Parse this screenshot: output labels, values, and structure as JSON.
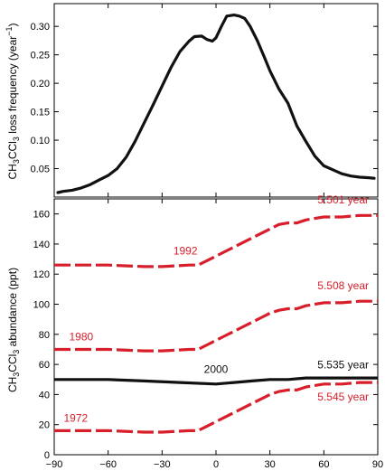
{
  "chart_data": [
    {
      "panel": "top",
      "type": "line",
      "ylabel": {
        "prefix": "CH",
        "sub1": "3",
        "mid": "CCl",
        "sub2": "3",
        "suffix": " loss frequency (year",
        "sup": "−1",
        "close": ")"
      },
      "xlim": [
        -90,
        90
      ],
      "ylim": [
        0,
        0.34
      ],
      "yticks": [
        "0.05",
        "0.10",
        "0.15",
        "0.20",
        "0.25",
        "0.30"
      ],
      "ytick_values": [
        0.05,
        0.1,
        0.15,
        0.2,
        0.25,
        0.3
      ],
      "grid": false,
      "series": [
        {
          "color": "#111111",
          "dashed": false,
          "x": [
            -88,
            -85,
            -80,
            -75,
            -70,
            -65,
            -60,
            -55,
            -50,
            -45,
            -40,
            -35,
            -30,
            -25,
            -20,
            -15,
            -12,
            -8,
            -5,
            -2,
            0,
            3,
            6,
            10,
            13,
            16,
            19,
            23,
            27,
            30,
            35,
            40,
            45,
            50,
            55,
            60,
            65,
            70,
            75,
            80,
            85,
            88
          ],
          "y": [
            0.008,
            0.01,
            0.012,
            0.016,
            0.022,
            0.03,
            0.038,
            0.05,
            0.07,
            0.098,
            0.13,
            0.162,
            0.195,
            0.228,
            0.256,
            0.274,
            0.282,
            0.283,
            0.277,
            0.274,
            0.28,
            0.3,
            0.318,
            0.32,
            0.318,
            0.314,
            0.3,
            0.275,
            0.245,
            0.222,
            0.19,
            0.165,
            0.125,
            0.098,
            0.072,
            0.055,
            0.048,
            0.041,
            0.037,
            0.035,
            0.034,
            0.033
          ]
        }
      ]
    },
    {
      "panel": "bottom",
      "type": "line",
      "ylabel": {
        "prefix": "CH",
        "sub1": "3",
        "mid": "CCl",
        "sub2": "3",
        "suffix": " abundance (ppt)"
      },
      "xlim": [
        -90,
        90
      ],
      "ylim": [
        0,
        170
      ],
      "yticks": [
        "0",
        "20",
        "40",
        "60",
        "80",
        "100",
        "120",
        "140",
        "160"
      ],
      "ytick_values": [
        0,
        20,
        40,
        60,
        80,
        100,
        120,
        140,
        160
      ],
      "xticks": [
        "−90",
        "−60",
        "−30",
        "0",
        "30",
        "60",
        "90"
      ],
      "xtick_values": [
        -90,
        -60,
        -30,
        0,
        30,
        60,
        90
      ],
      "grid": false,
      "series": [
        {
          "color": "#d81e2a",
          "dashed": true,
          "label": "1992",
          "right_label": "5.501 year",
          "x": [
            -90,
            -60,
            -40,
            -30,
            -15,
            -10,
            -5,
            0,
            5,
            10,
            15,
            20,
            25,
            30,
            35,
            40,
            45,
            50,
            55,
            60,
            70,
            80,
            90
          ],
          "y": [
            126,
            126,
            125,
            125,
            126,
            126,
            129,
            132,
            135,
            138,
            141,
            144,
            147,
            150,
            153,
            154,
            154,
            156,
            157,
            158,
            158,
            159,
            159
          ]
        },
        {
          "color": "#d81e2a",
          "dashed": true,
          "label": "1980",
          "right_label": "5.508 year",
          "x": [
            -90,
            -60,
            -40,
            -30,
            -15,
            -10,
            -5,
            0,
            5,
            10,
            15,
            20,
            25,
            30,
            35,
            40,
            45,
            50,
            55,
            60,
            70,
            80,
            90
          ],
          "y": [
            70,
            70,
            69,
            69,
            70,
            70,
            73,
            76,
            79,
            82,
            85,
            88,
            91,
            94,
            96,
            97,
            97,
            99,
            100,
            101,
            101,
            102,
            102
          ]
        },
        {
          "color": "#111111",
          "dashed": false,
          "label": "2000",
          "right_label": "5.535 year",
          "x": [
            -90,
            -60,
            -40,
            -20,
            0,
            10,
            20,
            30,
            40,
            50,
            60,
            70,
            80,
            90
          ],
          "y": [
            50,
            50,
            49,
            48,
            47,
            48,
            49,
            50,
            50,
            51,
            51,
            51,
            51,
            51
          ]
        },
        {
          "color": "#d81e2a",
          "dashed": true,
          "label": "1972",
          "right_label": "5.545 year",
          "x": [
            -90,
            -60,
            -40,
            -30,
            -15,
            -10,
            -5,
            0,
            5,
            10,
            15,
            20,
            25,
            30,
            35,
            40,
            45,
            50,
            55,
            60,
            70,
            80,
            90
          ],
          "y": [
            16,
            16,
            15,
            15,
            16,
            16,
            19,
            22,
            25,
            28,
            31,
            34,
            37,
            40,
            42,
            43,
            43,
            45,
            46,
            47,
            47,
            48,
            48
          ]
        }
      ]
    }
  ]
}
